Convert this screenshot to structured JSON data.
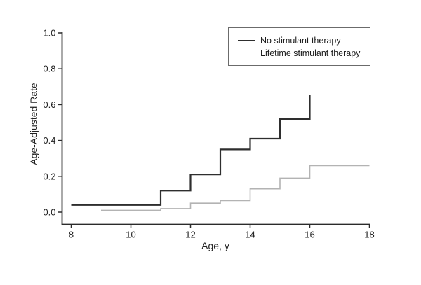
{
  "figure": {
    "x_label": "Age, y",
    "y_label": "Age-Adjusted Rate"
  },
  "legend": {
    "position": "top-right",
    "entries": [
      {
        "label": "No stimulant therapy",
        "color": "#2e2e2e"
      },
      {
        "label": "Lifetime stimulant therapy",
        "color": "#b3b3b3"
      }
    ]
  },
  "colors": {
    "axis": "#2b2b2b",
    "text": "#222222",
    "background": "#ffffff"
  },
  "chart_data": {
    "type": "line",
    "subtype": "step-after",
    "title": "",
    "xlabel": "Age, y",
    "ylabel": "Age-Adjusted Rate",
    "xlim": [
      8,
      18
    ],
    "ylim": [
      0,
      1.0
    ],
    "x_ticks": [
      "8",
      "10",
      "12",
      "14",
      "16",
      "18"
    ],
    "y_ticks": [
      "0.0",
      "0.2",
      "0.4",
      "0.6",
      "0.8",
      "1.0"
    ],
    "grid": false,
    "legend_position": "top-right",
    "series": [
      {
        "name": "No stimulant therapy",
        "color": "#2e2e2e",
        "stroke_width": 2.2,
        "points": [
          [
            8,
            0.04
          ],
          [
            11,
            0.12
          ],
          [
            12,
            0.21
          ],
          [
            13,
            0.35
          ],
          [
            14,
            0.41
          ],
          [
            15,
            0.52
          ],
          [
            16,
            0.655
          ]
        ],
        "extend_to_x": 16
      },
      {
        "name": "Lifetime stimulant therapy",
        "color": "#b3b3b3",
        "stroke_width": 1.6,
        "points": [
          [
            9,
            0.01
          ],
          [
            11,
            0.02
          ],
          [
            12,
            0.05
          ],
          [
            13,
            0.065
          ],
          [
            14,
            0.13
          ],
          [
            15,
            0.19
          ],
          [
            16,
            0.26
          ]
        ],
        "extend_to_x": 18
      }
    ]
  }
}
